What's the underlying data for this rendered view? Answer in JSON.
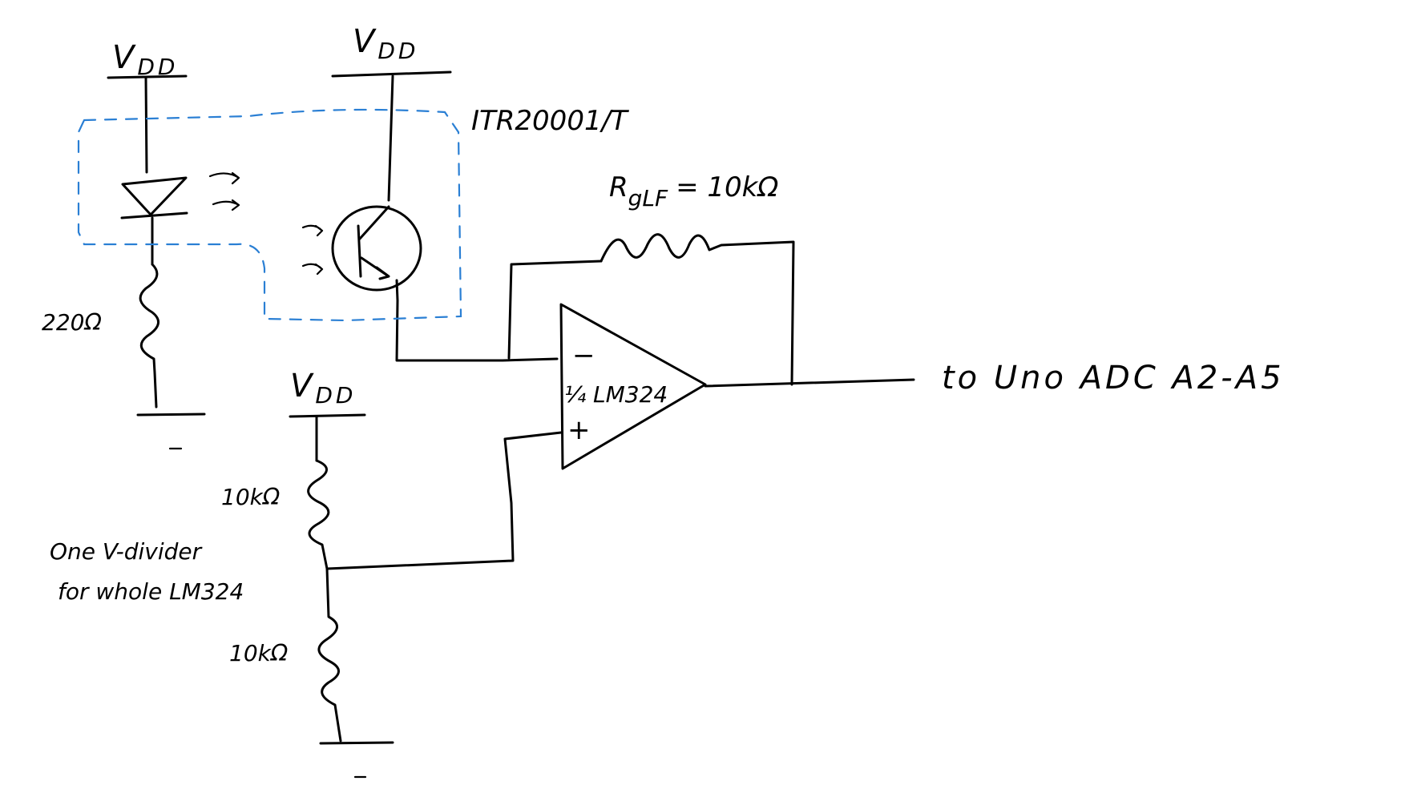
{
  "supplies": {
    "vdd_led": "V",
    "vdd_led_sub": "DD",
    "vdd_photo": "V",
    "vdd_photo_sub": "DD",
    "vdd_divider": "V",
    "vdd_divider_sub": "DD"
  },
  "components": {
    "sensor_label": "ITR20001/T",
    "led_resistor": "220Ω",
    "feedback_resistor_name": "R",
    "feedback_resistor_sub": "gLF",
    "feedback_resistor_value": "= 10kΩ",
    "divider_top": "10kΩ",
    "divider_bottom": "10kΩ",
    "opamp_label": "¼ LM324",
    "opamp_minus": "−",
    "opamp_plus": "+"
  },
  "notes": {
    "divider_note_line1": "One V-divider",
    "divider_note_line2": "for whole LM324",
    "output_label": "to Uno ADC  A2-A5"
  },
  "colors": {
    "ink": "#000000",
    "sensor_outline": "#2a7fd4"
  }
}
